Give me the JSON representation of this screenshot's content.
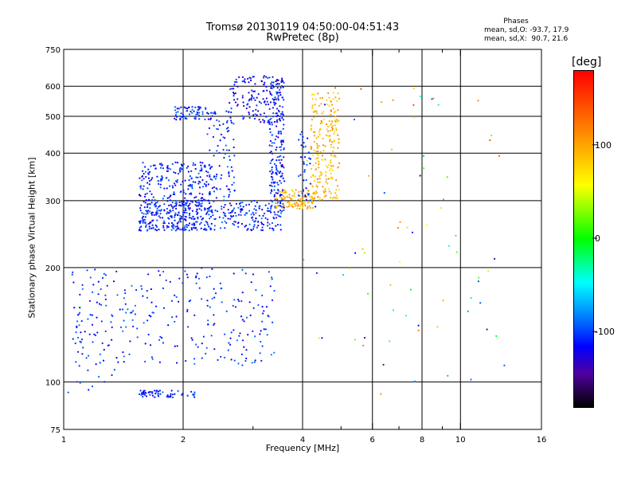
{
  "chart_data": {
    "type": "scatter",
    "title": "Tromsø 20130119 04:50:00-04:51:43",
    "subtitle": "RwPretec (8p)",
    "xlabel": "Frequency [MHz]",
    "ylabel": "Stationary phase Virtual Height [km]",
    "x_scale": "log",
    "y_scale": "log",
    "xlim": [
      1,
      16
    ],
    "ylim": [
      75,
      750
    ],
    "x_ticks": [
      1,
      2,
      4,
      6,
      8,
      10,
      16
    ],
    "x_tick_labels": [
      "1",
      "2",
      "4",
      "6",
      "8",
      "10",
      "16"
    ],
    "x_minor_ticks": [
      3,
      5,
      7,
      9
    ],
    "y_ticks": [
      75,
      100,
      200,
      300,
      400,
      500,
      600,
      750
    ],
    "y_tick_labels": [
      "75",
      "100",
      "200",
      "300",
      "400",
      "500",
      "600",
      "750"
    ],
    "grid": true,
    "phase_info": {
      "heading": "Phases",
      "line_o": "mean, sd,O: -93.7, 17.9",
      "line_x": "mean, sd,X:  90.7, 21.6"
    },
    "colorbar": {
      "label": "[deg]",
      "range": [
        -180,
        180
      ],
      "ticks": [
        100,
        0,
        -100
      ],
      "tick_labels": [
        "100",
        "0",
        "-100"
      ]
    },
    "clusters": [
      {
        "desc": "lower F-trace",
        "x": [
          1.55,
          3.6
        ],
        "y": [
          250,
          300
        ],
        "phase": -100,
        "count": 320
      },
      {
        "desc": "F-layer spread",
        "x": [
          1.55,
          2.4
        ],
        "y": [
          250,
          380
        ],
        "phase": -100,
        "count": 360
      },
      {
        "desc": "upper band 2MHz",
        "x": [
          1.9,
          2.3
        ],
        "y": [
          490,
          530
        ],
        "phase": -100,
        "count": 60
      },
      {
        "desc": "column 2.3-2.7MHz",
        "x": [
          2.3,
          2.7
        ],
        "y": [
          300,
          520
        ],
        "phase": -100,
        "count": 90
      },
      {
        "desc": "upper trace 3MHz",
        "x": [
          2.6,
          3.6
        ],
        "y": [
          480,
          640
        ],
        "phase": -110,
        "count": 140
      },
      {
        "desc": "vertical band 3.3-3.6MHz",
        "x": [
          3.3,
          3.6
        ],
        "y": [
          290,
          620
        ],
        "phase": -105,
        "count": 180
      },
      {
        "desc": "X-mode trace",
        "x": [
          3.4,
          4.3
        ],
        "y": [
          285,
          320
        ],
        "phase": 95,
        "count": 110
      },
      {
        "desc": "X-mode cusp",
        "x": [
          4.2,
          4.95
        ],
        "y": [
          300,
          580
        ],
        "phase": 95,
        "count": 220
      },
      {
        "desc": "O-mode 4MHz",
        "x": [
          3.9,
          4.2
        ],
        "y": [
          300,
          460
        ],
        "phase": -100,
        "count": 40
      },
      {
        "desc": "E-region echoes",
        "x": [
          1.05,
          3.4
        ],
        "y": [
          110,
          200
        ],
        "phase": -100,
        "count": 280
      },
      {
        "desc": "near 1.4-2.1MHz low",
        "x": [
          1.55,
          2.15
        ],
        "y": [
          91,
          95
        ],
        "phase": -100,
        "count": 60
      },
      {
        "desc": "left short",
        "x": [
          1.0,
          1.35
        ],
        "y": [
          91,
          120
        ],
        "phase": -100,
        "count": 14
      },
      {
        "desc": "scattered noise",
        "x": [
          4.0,
          13.0
        ],
        "y": [
          90,
          620
        ],
        "phase": 30,
        "count": 75
      }
    ]
  }
}
